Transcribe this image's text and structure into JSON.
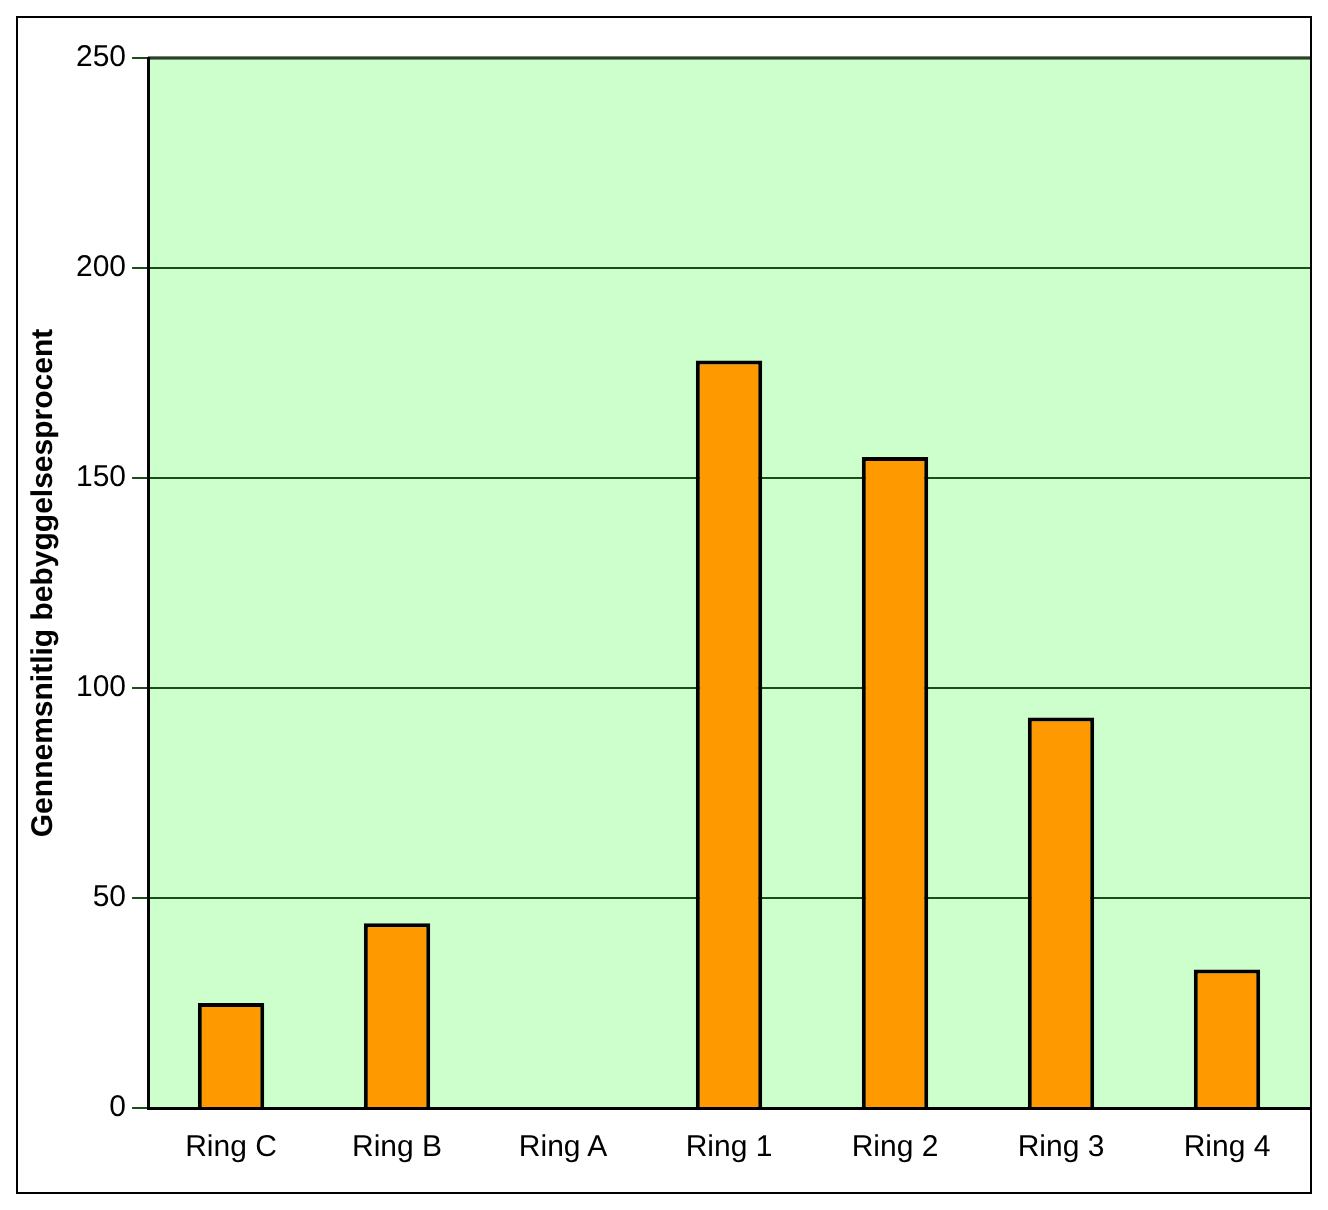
{
  "chart_data": {
    "type": "bar",
    "ylabel": "Gennemsnitlig bebyggelsesprocent",
    "categories": [
      "Ring C",
      "Ring B",
      "Ring A",
      "Ring 1",
      "Ring 2",
      "Ring 3",
      "Ring 4"
    ],
    "values": [
      25,
      44,
      0,
      178,
      155,
      93,
      33
    ],
    "color": "#ff9900",
    "ylim": [
      0,
      250
    ],
    "yticks": [
      0,
      50,
      100,
      150,
      200,
      250
    ],
    "grid": "y",
    "legend": false
  }
}
